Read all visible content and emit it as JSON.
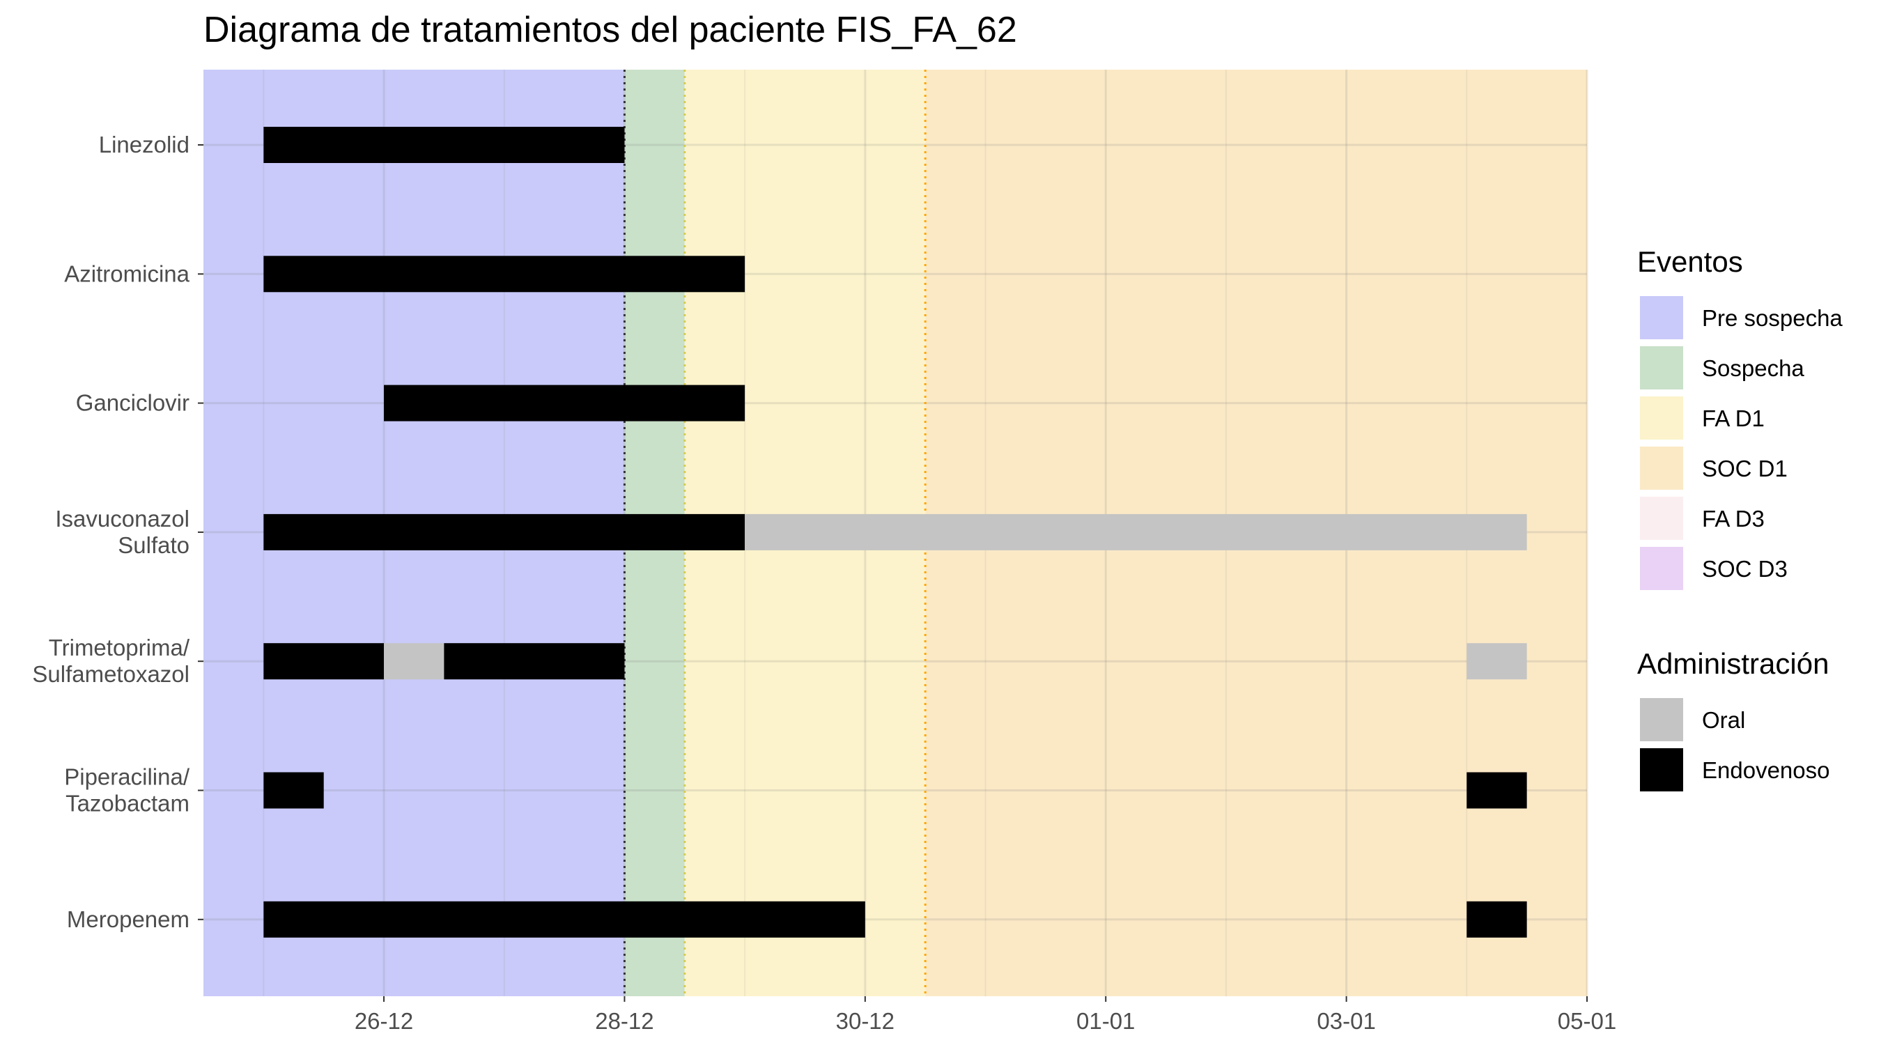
{
  "chart_data": {
    "type": "gantt",
    "title": "Diagrama de tratamientos del paciente FIS_FA_62",
    "xlabel": "",
    "ylabel": "",
    "x_axis": {
      "type": "date",
      "range": [
        "2021-12-24T12:00",
        "2022-01-05T00:00"
      ],
      "ticks": [
        {
          "value": "2021-12-26",
          "label": "26-12"
        },
        {
          "value": "2021-12-28",
          "label": "28-12"
        },
        {
          "value": "2021-12-30",
          "label": "30-12"
        },
        {
          "value": "2022-01-01",
          "label": "01-01"
        },
        {
          "value": "2022-01-03",
          "label": "03-01"
        },
        {
          "value": "2022-01-05",
          "label": "05-01"
        }
      ],
      "grid": true
    },
    "events": [
      {
        "name": "Pre sospecha",
        "color": "#c9caf9",
        "start": "2021-12-24T12:00",
        "end": "2021-12-28T00:00"
      },
      {
        "name": "Sospecha",
        "color": "#c9e0c9",
        "start": "2021-12-28T00:00",
        "end": "2021-12-28T12:00"
      },
      {
        "name": "FA D1",
        "color": "#fcf3cc",
        "start": "2021-12-28T12:00",
        "end": "2021-12-30T12:00"
      },
      {
        "name": "SOC D1",
        "color": "#fbe9c6",
        "start": "2021-12-30T12:00",
        "end": "2022-01-05T00:00"
      }
    ],
    "event_lines": [
      {
        "date": "2021-12-28T00:00",
        "color": "#333333"
      },
      {
        "date": "2021-12-28T12:00",
        "color": "#d4cc52"
      },
      {
        "date": "2021-12-30T12:00",
        "color": "#ffa500"
      }
    ],
    "treatments": [
      {
        "label_lines": [
          "Linezolid"
        ],
        "bars": [
          {
            "start": "2021-12-25",
            "end": "2021-12-28",
            "route": "Endovenoso"
          }
        ]
      },
      {
        "label_lines": [
          "Azitromicina"
        ],
        "bars": [
          {
            "start": "2021-12-25",
            "end": "2021-12-29",
            "route": "Endovenoso"
          }
        ]
      },
      {
        "label_lines": [
          "Ganciclovir"
        ],
        "bars": [
          {
            "start": "2021-12-26",
            "end": "2021-12-29",
            "route": "Endovenoso"
          }
        ]
      },
      {
        "label_lines": [
          "Isavuconazol",
          "Sulfato"
        ],
        "bars": [
          {
            "start": "2021-12-25",
            "end": "2021-12-29",
            "route": "Endovenoso"
          },
          {
            "start": "2021-12-29",
            "end": "2022-01-04T12:00",
            "route": "Oral"
          }
        ]
      },
      {
        "label_lines": [
          "Trimetoprima/",
          "Sulfametoxazol"
        ],
        "bars": [
          {
            "start": "2021-12-25",
            "end": "2021-12-26",
            "route": "Endovenoso"
          },
          {
            "start": "2021-12-26",
            "end": "2021-12-26T12:00",
            "route": "Oral"
          },
          {
            "start": "2021-12-26T12:00",
            "end": "2021-12-28",
            "route": "Endovenoso"
          },
          {
            "start": "2022-01-04",
            "end": "2022-01-04T12:00",
            "route": "Oral"
          }
        ]
      },
      {
        "label_lines": [
          "Piperacilina/",
          "Tazobactam"
        ],
        "bars": [
          {
            "start": "2021-12-25",
            "end": "2021-12-25T12:00",
            "route": "Endovenoso"
          },
          {
            "start": "2022-01-04",
            "end": "2022-01-04T12:00",
            "route": "Endovenoso"
          }
        ]
      },
      {
        "label_lines": [
          "Meropenem"
        ],
        "bars": [
          {
            "start": "2021-12-25",
            "end": "2021-12-30",
            "route": "Endovenoso"
          },
          {
            "start": "2022-01-04",
            "end": "2022-01-04T12:00",
            "route": "Endovenoso"
          }
        ]
      }
    ],
    "legend": {
      "position": "right",
      "groups": [
        {
          "title": "Eventos",
          "items": [
            {
              "label": "Pre sospecha",
              "color": "#c9caf9"
            },
            {
              "label": "Sospecha",
              "color": "#c9e0c9"
            },
            {
              "label": "FA D1",
              "color": "#fcf3cc"
            },
            {
              "label": "SOC D1",
              "color": "#fbe9c6"
            },
            {
              "label": "FA D3",
              "color": "#fbeef1"
            },
            {
              "label": "SOC D3",
              "color": "#e9d2f5"
            }
          ]
        },
        {
          "title": "Administración",
          "items": [
            {
              "label": "Oral",
              "color": "#c4c4c4"
            },
            {
              "label": "Endovenoso",
              "color": "#000000"
            }
          ]
        }
      ]
    },
    "route_colors": {
      "Oral": "#c4c4c4",
      "Endovenoso": "#000000"
    }
  }
}
